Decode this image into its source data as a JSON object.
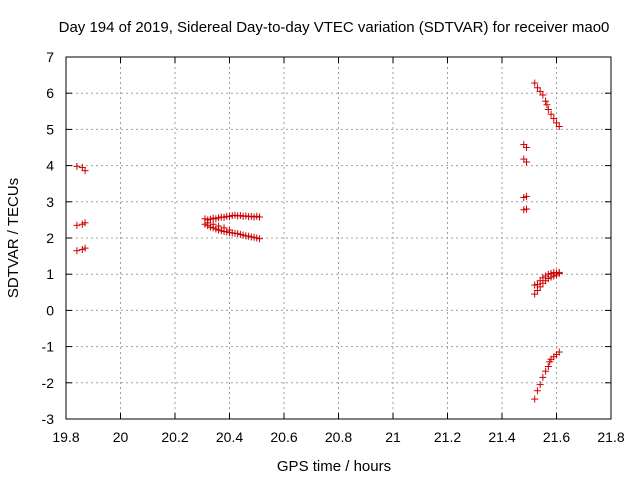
{
  "chart_data": {
    "type": "scatter",
    "title": "Day 194 of 2019, Sidereal Day-to-day VTEC variation (SDTVAR) for receiver mao0",
    "xlabel": "GPS time / hours",
    "ylabel": "SDTVAR / TECUs",
    "xlim": [
      19.8,
      21.8
    ],
    "ylim": [
      -3,
      7
    ],
    "x_ticks": [
      19.8,
      20.0,
      20.2,
      20.4,
      20.6,
      20.8,
      21.0,
      21.2,
      21.4,
      21.6,
      21.8
    ],
    "x_tick_labels": [
      "19.8",
      "20",
      "20.2",
      "20.4",
      "20.6",
      "20.8",
      "21",
      "21.2",
      "21.4",
      "21.6",
      "21.8"
    ],
    "y_ticks": [
      -3,
      -2,
      -1,
      0,
      1,
      2,
      3,
      4,
      5,
      6,
      7
    ],
    "y_tick_labels": [
      "-3",
      "-2",
      "-1",
      "0",
      "1",
      "2",
      "3",
      "4",
      "5",
      "6",
      "7"
    ],
    "grid": true,
    "marker": "+",
    "color": "#cc0000",
    "series": [
      {
        "points": [
          [
            19.84,
            3.98
          ],
          [
            19.86,
            3.95
          ],
          [
            19.87,
            3.86
          ],
          [
            19.84,
            2.35
          ],
          [
            19.86,
            2.38
          ],
          [
            19.87,
            2.42
          ],
          [
            19.84,
            1.65
          ],
          [
            19.86,
            1.68
          ],
          [
            19.87,
            1.72
          ],
          [
            20.31,
            2.53
          ],
          [
            20.32,
            2.5
          ],
          [
            20.33,
            2.52
          ],
          [
            20.34,
            2.55
          ],
          [
            20.35,
            2.53
          ],
          [
            20.36,
            2.56
          ],
          [
            20.37,
            2.58
          ],
          [
            20.38,
            2.57
          ],
          [
            20.39,
            2.6
          ],
          [
            20.4,
            2.59
          ],
          [
            20.41,
            2.62
          ],
          [
            20.42,
            2.63
          ],
          [
            20.43,
            2.61
          ],
          [
            20.44,
            2.62
          ],
          [
            20.45,
            2.6
          ],
          [
            20.46,
            2.61
          ],
          [
            20.47,
            2.59
          ],
          [
            20.48,
            2.6
          ],
          [
            20.49,
            2.58
          ],
          [
            20.5,
            2.6
          ],
          [
            20.51,
            2.58
          ],
          [
            20.31,
            2.38
          ],
          [
            20.32,
            2.34
          ],
          [
            20.33,
            2.3
          ],
          [
            20.34,
            2.28
          ],
          [
            20.35,
            2.25
          ],
          [
            20.36,
            2.22
          ],
          [
            20.37,
            2.2
          ],
          [
            20.38,
            2.18
          ],
          [
            20.39,
            2.17
          ],
          [
            20.4,
            2.15
          ],
          [
            20.41,
            2.14
          ],
          [
            20.42,
            2.13
          ],
          [
            20.43,
            2.12
          ],
          [
            20.44,
            2.1
          ],
          [
            20.45,
            2.08
          ],
          [
            20.46,
            2.06
          ],
          [
            20.47,
            2.05
          ],
          [
            20.48,
            2.03
          ],
          [
            20.49,
            2.02
          ],
          [
            20.5,
            2.0
          ],
          [
            20.51,
            1.98
          ],
          [
            20.32,
            2.42
          ],
          [
            20.34,
            2.38
          ],
          [
            20.36,
            2.33
          ],
          [
            20.38,
            2.28
          ],
          [
            20.4,
            2.22
          ],
          [
            21.48,
            4.58
          ],
          [
            21.49,
            4.5
          ],
          [
            21.48,
            4.18
          ],
          [
            21.49,
            4.1
          ],
          [
            21.48,
            3.12
          ],
          [
            21.49,
            3.15
          ],
          [
            21.48,
            2.78
          ],
          [
            21.49,
            2.8
          ],
          [
            21.52,
            6.28
          ],
          [
            21.53,
            6.15
          ],
          [
            21.54,
            6.05
          ],
          [
            21.55,
            5.95
          ],
          [
            21.56,
            5.78
          ],
          [
            21.565,
            5.68
          ],
          [
            21.57,
            5.55
          ],
          [
            21.58,
            5.42
          ],
          [
            21.59,
            5.3
          ],
          [
            21.6,
            5.18
          ],
          [
            21.61,
            5.08
          ],
          [
            21.52,
            0.45
          ],
          [
            21.53,
            0.55
          ],
          [
            21.54,
            0.65
          ],
          [
            21.55,
            0.75
          ],
          [
            21.56,
            0.82
          ],
          [
            21.57,
            0.88
          ],
          [
            21.58,
            0.92
          ],
          [
            21.59,
            0.95
          ],
          [
            21.6,
            0.98
          ],
          [
            21.61,
            1.02
          ],
          [
            21.52,
            0.7
          ],
          [
            21.53,
            0.72
          ],
          [
            21.54,
            0.82
          ],
          [
            21.55,
            0.9
          ],
          [
            21.56,
            0.95
          ],
          [
            21.57,
            1.0
          ],
          [
            21.58,
            1.02
          ],
          [
            21.59,
            1.05
          ],
          [
            21.6,
            1.03
          ],
          [
            21.61,
            1.05
          ],
          [
            21.52,
            -2.45
          ],
          [
            21.53,
            -2.22
          ],
          [
            21.54,
            -2.05
          ],
          [
            21.55,
            -1.85
          ],
          [
            21.56,
            -1.68
          ],
          [
            21.57,
            -1.55
          ],
          [
            21.575,
            -1.42
          ],
          [
            21.58,
            -1.35
          ],
          [
            21.59,
            -1.28
          ],
          [
            21.6,
            -1.22
          ],
          [
            21.61,
            -1.15
          ]
        ]
      }
    ]
  }
}
